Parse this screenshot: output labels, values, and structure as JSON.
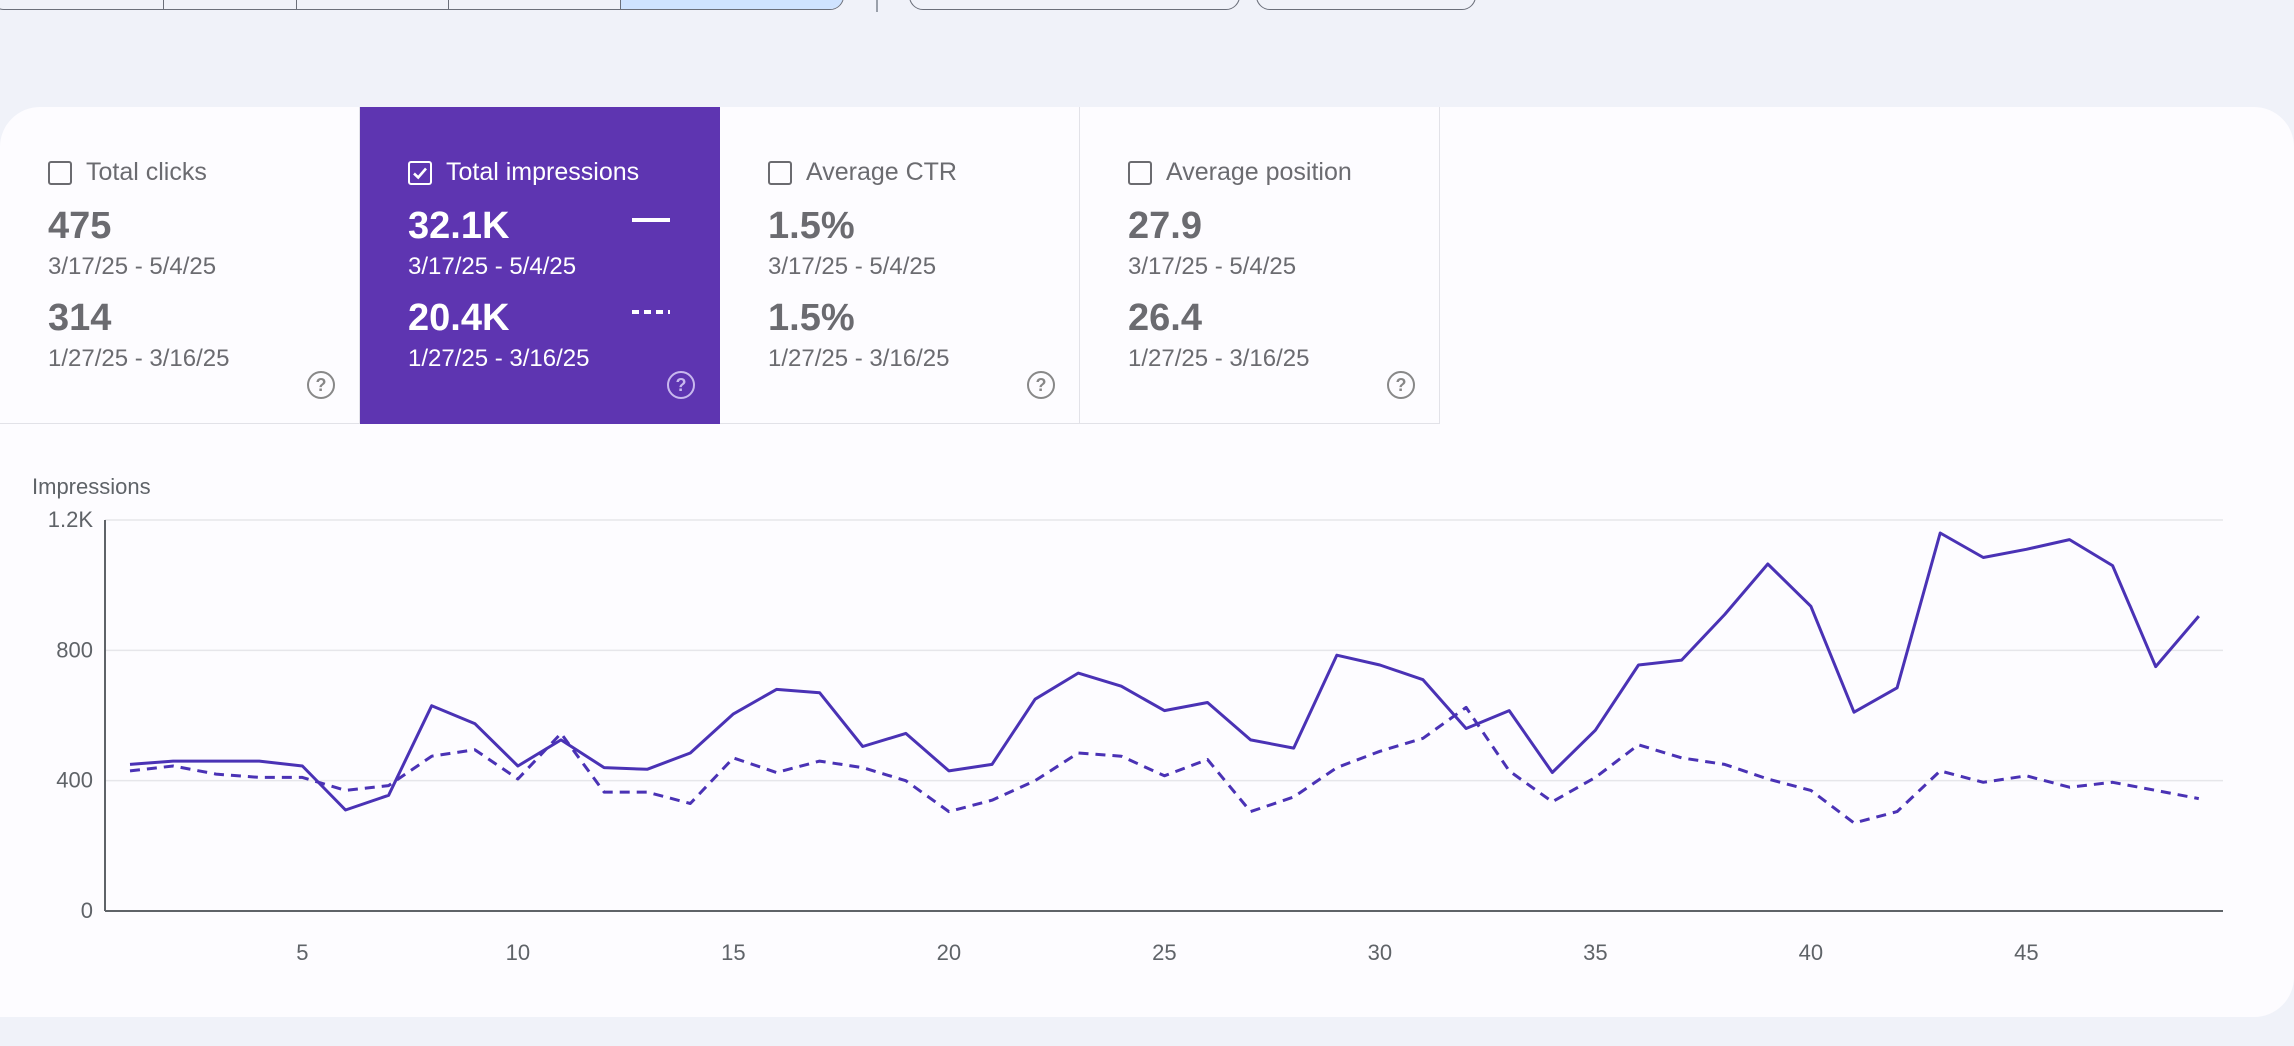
{
  "metrics": [
    {
      "label": "Total clicks",
      "value_current": "475",
      "range_current": "3/17/25 - 5/4/25",
      "value_previous": "314",
      "range_previous": "1/27/25 - 3/16/25",
      "checked": false
    },
    {
      "label": "Total impressions",
      "value_current": "32.1K",
      "range_current": "3/17/25 - 5/4/25",
      "value_previous": "20.4K",
      "range_previous": "1/27/25 - 3/16/25",
      "checked": true
    },
    {
      "label": "Average CTR",
      "value_current": "1.5%",
      "range_current": "3/17/25 - 5/4/25",
      "value_previous": "1.5%",
      "range_previous": "1/27/25 - 3/16/25",
      "checked": false
    },
    {
      "label": "Average position",
      "value_current": "27.9",
      "range_current": "3/17/25 - 5/4/25",
      "value_previous": "26.4",
      "range_previous": "1/27/25 - 3/16/25",
      "checked": false
    }
  ],
  "help_glyph": "?",
  "colors": {
    "accent": "#5e35b1",
    "line": "#4a32b5",
    "background": "#f0f2f9"
  },
  "chart_data": {
    "type": "line",
    "ylabel": "Impressions",
    "ylim": [
      0,
      1200
    ],
    "yticks": [
      0,
      400,
      800,
      1200
    ],
    "ytick_labels": [
      "0",
      "400",
      "800",
      "1.2K"
    ],
    "xticks": [
      5,
      10,
      15,
      20,
      25,
      30,
      35,
      40,
      45
    ],
    "xlim": [
      1,
      49
    ],
    "grid": true,
    "x": [
      1,
      2,
      3,
      4,
      5,
      6,
      7,
      8,
      9,
      10,
      11,
      12,
      13,
      14,
      15,
      16,
      17,
      18,
      19,
      20,
      21,
      22,
      23,
      24,
      25,
      26,
      27,
      28,
      29,
      30,
      31,
      32,
      33,
      34,
      35,
      36,
      37,
      38,
      39,
      40,
      41,
      42,
      43,
      44,
      45,
      46,
      47,
      48,
      49
    ],
    "series": [
      {
        "line_style": "solid",
        "values": [
          450,
          460,
          460,
          460,
          445,
          310,
          355,
          630,
          575,
          445,
          525,
          440,
          435,
          485,
          605,
          680,
          670,
          505,
          545,
          430,
          450,
          650,
          730,
          690,
          615,
          640,
          525,
          500,
          785,
          755,
          710,
          560,
          615,
          425,
          555,
          755,
          770,
          910,
          1065,
          935,
          610,
          685,
          1160,
          1085,
          1110,
          1140,
          1060,
          750,
          905
        ]
      },
      {
        "line_style": "dashed",
        "values": [
          430,
          445,
          420,
          410,
          410,
          370,
          385,
          475,
          495,
          405,
          545,
          365,
          365,
          330,
          470,
          425,
          460,
          440,
          400,
          305,
          340,
          400,
          485,
          475,
          415,
          465,
          305,
          350,
          440,
          490,
          530,
          625,
          430,
          335,
          410,
          510,
          470,
          450,
          405,
          370,
          270,
          305,
          430,
          395,
          415,
          380,
          395,
          370,
          345
        ]
      }
    ]
  }
}
